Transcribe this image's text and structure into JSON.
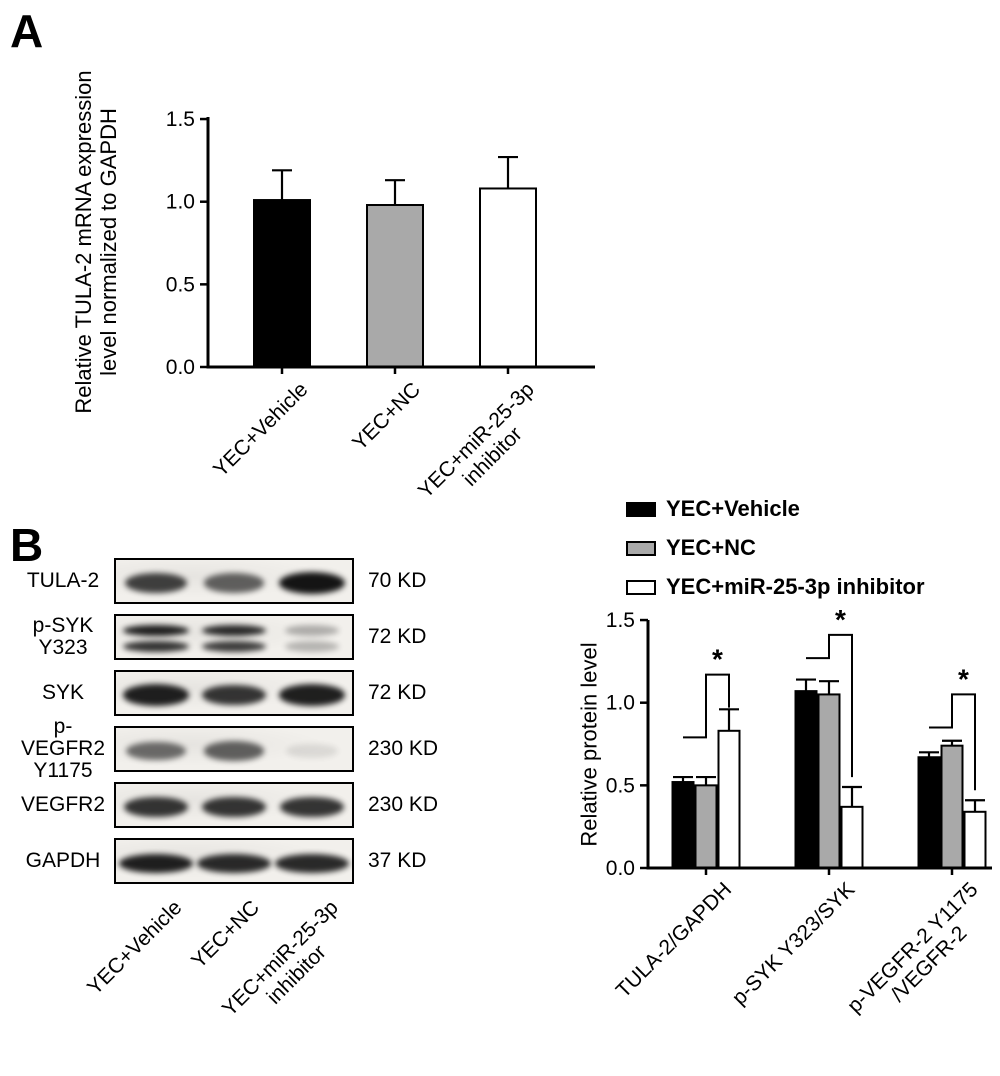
{
  "panel_a": {
    "label": "A",
    "chart_data": {
      "type": "bar",
      "title": "",
      "xlabel": "",
      "ylabel": "Relative TULA-2 mRNA expression\nlevel normalized to GAPDH",
      "ylim": [
        0,
        1.5
      ],
      "yticks": [
        0,
        0.5,
        1,
        1.5
      ],
      "grid": false,
      "categories": [
        "YEC+Vehicle",
        "YEC+NC",
        "YEC+miR-25-3p\ninhibitor"
      ],
      "values": [
        1.01,
        0.98,
        1.08
      ],
      "errors_upper": [
        0.18,
        0.15,
        0.19
      ],
      "bar_colors": [
        "#000000",
        "#a9a9a9",
        "#ffffff"
      ]
    }
  },
  "panel_b": {
    "label": "B",
    "western_blot": {
      "lane_labels": [
        "YEC+Vehicle",
        "YEC+NC",
        "YEC+miR-25-3p\ninhibitor"
      ],
      "rows": [
        {
          "protein": "TULA-2",
          "weight": "70 KD",
          "band_intensities": [
            0.8,
            0.65,
            1.0
          ]
        },
        {
          "protein": "p-SYK\nY323",
          "weight": "72 KD",
          "band_intensities": [
            0.95,
            0.9,
            0.3
          ],
          "doublet": true
        },
        {
          "protein": "SYK",
          "weight": "72 KD",
          "band_intensities": [
            0.95,
            0.85,
            0.95
          ]
        },
        {
          "protein": "p-VEGFR2\nY1175",
          "weight": "230 KD",
          "band_intensities": [
            0.6,
            0.65,
            0.1
          ]
        },
        {
          "protein": "VEGFR2",
          "weight": "230 KD",
          "band_intensities": [
            0.85,
            0.85,
            0.85
          ]
        },
        {
          "protein": "GAPDH",
          "weight": "37 KD",
          "band_intensities": [
            0.95,
            0.9,
            0.9
          ],
          "wide": true
        }
      ]
    },
    "chart_data": {
      "type": "bar",
      "title": "",
      "xlabel": "",
      "ylabel": "Relative protein level",
      "ylim": [
        0,
        1.5
      ],
      "yticks": [
        0,
        0.5,
        1,
        1.5
      ],
      "grid": false,
      "legend_position": "top",
      "categories": [
        "TULA-2/GAPDH",
        "p-SYK Y323/SYK",
        "p-VEGFR-2 Y1175\n/VEGFR-2"
      ],
      "series": [
        {
          "name": "YEC+Vehicle",
          "color": "#000000",
          "values": [
            0.52,
            1.07,
            0.67
          ],
          "errors_upper": [
            0.03,
            0.07,
            0.03
          ]
        },
        {
          "name": "YEC+NC",
          "color": "#a9a9a9",
          "values": [
            0.5,
            1.05,
            0.74
          ],
          "errors_upper": [
            0.05,
            0.08,
            0.03
          ]
        },
        {
          "name": "YEC+miR-25-3p inhibitor",
          "color": "#ffffff",
          "values": [
            0.83,
            0.37,
            0.34
          ],
          "errors_upper": [
            0.13,
            0.12,
            0.07
          ]
        }
      ],
      "significance": [
        {
          "label": "*",
          "low": 0.79,
          "high": 1.17,
          "end": 0.97
        },
        {
          "label": "*",
          "low": 1.27,
          "high": 1.41,
          "end": 0.55
        },
        {
          "label": "*",
          "low": 0.85,
          "high": 1.05,
          "end": 0.47
        }
      ]
    }
  }
}
